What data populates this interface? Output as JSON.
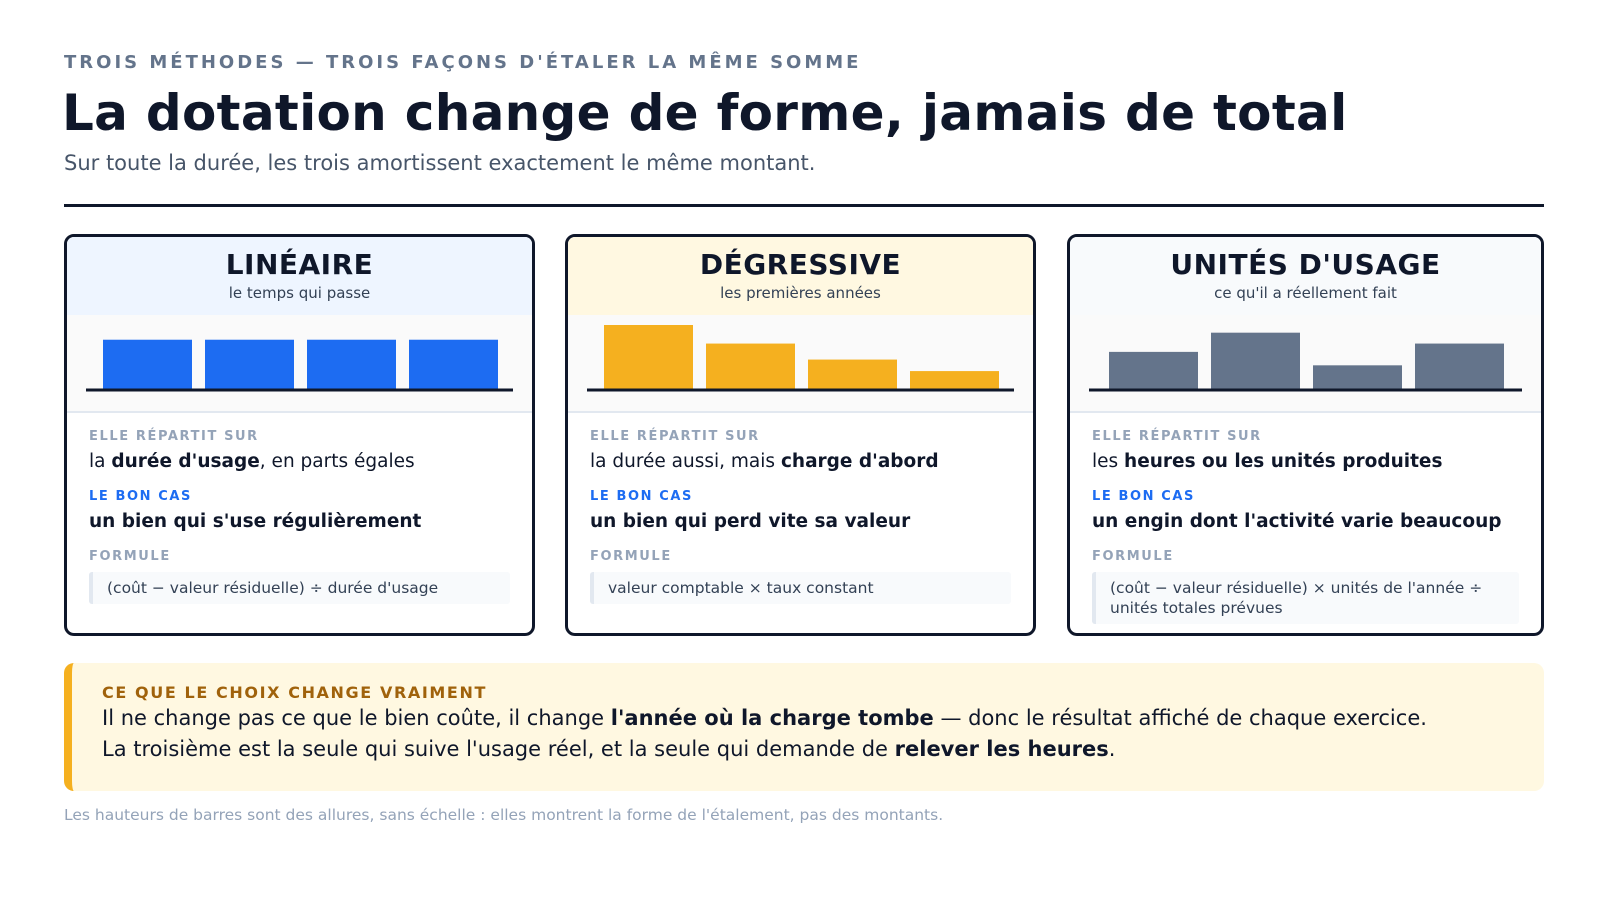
{
  "header": {
    "kicker": "TROIS MÉTHODES — TROIS FAÇONS D'ÉTALER LA MÊME SOMME",
    "title": "La dotation change de forme, jamais de total",
    "subtitle": "Sur toute la durée, les trois amortissent exactement le même montant."
  },
  "labels": {
    "spread": "ELLE RÉPARTIT SUR",
    "good_case": "LE BON CAS",
    "formula": "FORMULE"
  },
  "cards": [
    {
      "name": "LINÉAIRE",
      "tagline": "le temps qui passe",
      "head_bg": "#eef5ff",
      "bar_color": "#1d6cf2",
      "spread_pre": "la ",
      "spread_bold": "durée d'usage",
      "spread_post": ", en parts égales",
      "good_case": "un bien qui s'use régulièrement",
      "formula": "(coût − valeur résiduelle) ÷ durée d'usage"
    },
    {
      "name": "DÉGRESSIVE",
      "tagline": "les premières années",
      "head_bg": "#fff8e1",
      "bar_color": "#f5b01f",
      "spread_pre": "la durée aussi, mais ",
      "spread_bold": "charge d'abord",
      "spread_post": "",
      "good_case": "un bien qui perd vite sa valeur",
      "formula": "valeur comptable × taux constant"
    },
    {
      "name": "UNITÉS D'USAGE",
      "tagline": "ce qu'il a réellement fait",
      "head_bg": "#f8fafc",
      "bar_color": "#64748b",
      "spread_pre": "les ",
      "spread_bold": "heures ou les unités produites",
      "spread_post": "",
      "good_case": "un engin dont l'activité varie beaucoup",
      "formula": "(coût − valeur résiduelle) × unités de l'année ÷ unités totales prévues"
    }
  ],
  "chart_data": [
    {
      "type": "bar",
      "categories": [
        "1",
        "2",
        "3",
        "4"
      ],
      "values": [
        0.77,
        0.77,
        0.77,
        0.77
      ],
      "ylim": [
        0,
        1
      ],
      "color": "#1d6cf2",
      "axis_ticks": false
    },
    {
      "type": "bar",
      "categories": [
        "1",
        "2",
        "3",
        "4"
      ],
      "values": [
        1.0,
        0.71,
        0.46,
        0.28
      ],
      "ylim": [
        0,
        1
      ],
      "color": "#f5b01f",
      "axis_ticks": false
    },
    {
      "type": "bar",
      "categories": [
        "1",
        "2",
        "3",
        "4"
      ],
      "values": [
        0.58,
        0.88,
        0.37,
        0.71
      ],
      "ylim": [
        0,
        1
      ],
      "color": "#64748b",
      "axis_ticks": false
    }
  ],
  "note": {
    "label": "CE QUE LE CHOIX CHANGE VRAIMENT",
    "line1_pre": "Il ne change pas ce que le bien coûte, il change ",
    "line1_bold": "l'année où la charge tombe",
    "line1_post": " — donc le résultat affiché de chaque exercice.",
    "line2_pre": "La troisième est la seule qui suive l'usage réel, et la seule qui demande de ",
    "line2_bold": "relever les heures",
    "line2_post": "."
  },
  "footnote": "Les hauteurs de barres sont des allures, sans échelle : elles montrent la forme de l'étalement, pas des montants."
}
